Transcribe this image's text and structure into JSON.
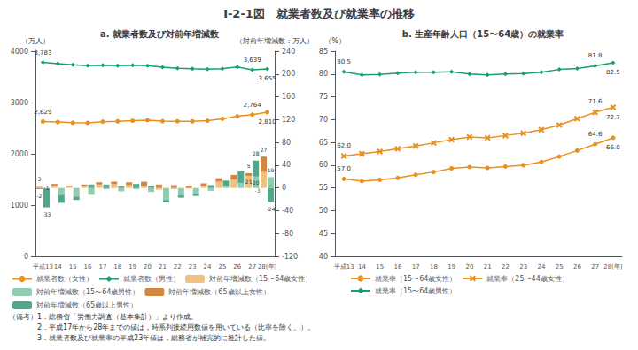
{
  "title": "I-2-1図　就業者数及び就業率の推移",
  "notes": [
    "（備考）1．総務省「労働力調査（基本集計）」より作成。",
    "　　　　2．平成17年から28年までの値は，時系列接続用数値を用いている（比率を除く。）。",
    "　　　　3．就業者数及び就業率の平成23年値は，総務省が補完的に推計した値。"
  ],
  "chart_data": [
    {
      "type": "bar",
      "title": "a. 就業者数及び対前年増減数",
      "ylabel": "（万人）",
      "y2label": "（対前年増減数：万人）",
      "categories": [
        "平成13",
        "14",
        "15",
        "16",
        "17",
        "18",
        "19",
        "20",
        "21",
        "22",
        "23",
        "24",
        "25",
        "26",
        "27",
        "28(年)"
      ],
      "ylim": [
        0,
        4000
      ],
      "yticks": [
        0,
        1000,
        2000,
        3000,
        4000
      ],
      "y2lim": [
        -120,
        240
      ],
      "y2ticks": [
        -120,
        -80,
        -40,
        0,
        40,
        80,
        120,
        160,
        200,
        240
      ],
      "grid": false,
      "stacked": true,
      "series": [
        {
          "name": "就業者数（女性）",
          "type": "line",
          "color": "#E89020",
          "marker": "circle",
          "values": [
            2629,
            2620,
            2607,
            2604,
            2627,
            2634,
            2645,
            2656,
            2637,
            2635,
            2634,
            2645,
            2682,
            2731,
            2764,
            2810
          ],
          "value_labels": [
            "2,629",
            null,
            null,
            null,
            null,
            null,
            null,
            null,
            null,
            null,
            null,
            null,
            null,
            null,
            "2,764",
            "2,810"
          ]
        },
        {
          "name": "就業者数（男性）",
          "type": "line",
          "color": "#1A9E6E",
          "marker": "diamond",
          "values": [
            3783,
            3758,
            3737,
            3718,
            3728,
            3720,
            3730,
            3721,
            3690,
            3670,
            3658,
            3650,
            3660,
            3695,
            3639,
            3655
          ],
          "value_labels": [
            "3,783",
            null,
            null,
            null,
            null,
            null,
            null,
            null,
            null,
            null,
            null,
            null,
            null,
            null,
            "3,639",
            "3,655"
          ]
        },
        {
          "name": "対前年増減数（15〜64歳女性）",
          "type": "bar",
          "axis": "y2",
          "color": "#F0C080",
          "values": [
            3,
            4,
            2,
            3,
            6,
            7,
            5,
            4,
            -3,
            -2,
            -1,
            4,
            11,
            15,
            21,
            28
          ],
          "value_labels": [
            "3",
            null,
            null,
            null,
            null,
            null,
            null,
            null,
            null,
            null,
            null,
            null,
            null,
            null,
            "21",
            null
          ]
        },
        {
          "name": "対前年増減数（15〜64歳男性）",
          "type": "bar",
          "axis": "y2",
          "color": "#90CCB0",
          "values": [
            -1,
            -12,
            -15,
            -12,
            -2,
            -6,
            -2,
            -7,
            -21,
            -13,
            -10,
            -5,
            4,
            9,
            20,
            19
          ],
          "value_labels": [
            "-1",
            null,
            null,
            null,
            null,
            null,
            null,
            null,
            null,
            null,
            null,
            null,
            null,
            null,
            "20",
            "19"
          ]
        },
        {
          "name": "対前年増減数（65歳以上女性）",
          "type": "bar",
          "axis": "y2",
          "color": "#D08840",
          "values": [
            -2,
            3,
            2,
            3,
            4,
            4,
            5,
            7,
            6,
            5,
            4,
            4,
            6,
            8,
            5,
            27
          ],
          "value_labels": [
            "-2",
            null,
            null,
            null,
            null,
            null,
            null,
            null,
            null,
            null,
            null,
            null,
            null,
            null,
            "5",
            "27"
          ]
        },
        {
          "name": "対前年増減数（65歳以上男性）",
          "type": "bar",
          "axis": "y2",
          "color": "#50A888",
          "values": [
            -33,
            -14,
            -6,
            6,
            6,
            3,
            7,
            3,
            -4,
            -4,
            -4,
            5,
            9,
            21,
            28,
            -24
          ],
          "value_labels": [
            "-33",
            null,
            null,
            null,
            null,
            null,
            null,
            null,
            null,
            null,
            null,
            null,
            null,
            null,
            "28",
            "-24"
          ]
        }
      ],
      "annotations": [
        {
          "text": "-3",
          "x": "28(年)",
          "y": -5,
          "axis": "y2"
        }
      ]
    },
    {
      "type": "line",
      "title": "b. 生産年齢人口（15〜64歳）の就業率",
      "ylabel": "（%）",
      "categories": [
        "平成13",
        "14",
        "15",
        "16",
        "17",
        "18",
        "19",
        "20",
        "21",
        "22",
        "23",
        "24",
        "25",
        "26",
        "27",
        "28(年)"
      ],
      "ylim": [
        40,
        85
      ],
      "yticks": [
        40,
        45,
        50,
        55,
        60,
        65,
        70,
        75,
        80,
        85
      ],
      "grid": false,
      "series": [
        {
          "name": "就業率（15〜64歳女性）",
          "color": "#E89020",
          "marker": "circle",
          "values": [
            57.0,
            56.5,
            56.8,
            57.2,
            57.9,
            58.5,
            59.3,
            59.6,
            59.4,
            59.7,
            60.0,
            60.7,
            61.9,
            63.2,
            64.6,
            66.0
          ],
          "value_labels": [
            "57.0",
            null,
            null,
            null,
            null,
            null,
            null,
            null,
            null,
            null,
            null,
            null,
            null,
            null,
            "64.6",
            "66.0"
          ]
        },
        {
          "name": "就業率（25〜44歳女性）",
          "color": "#E89020",
          "marker": "x",
          "values": [
            62.0,
            62.5,
            63.0,
            63.6,
            64.2,
            64.9,
            65.6,
            66.2,
            66.0,
            66.5,
            67.0,
            67.8,
            68.8,
            70.2,
            71.6,
            72.7
          ],
          "value_labels": [
            "62.0",
            null,
            null,
            null,
            null,
            null,
            null,
            null,
            null,
            null,
            null,
            null,
            null,
            null,
            "71.6",
            "72.7"
          ]
        },
        {
          "name": "就業率（15〜64歳男性）",
          "color": "#1A9E6E",
          "marker": "diamond",
          "values": [
            80.5,
            79.8,
            79.9,
            80.2,
            80.4,
            80.4,
            80.5,
            80.0,
            79.8,
            80.0,
            80.1,
            80.4,
            81.0,
            81.2,
            81.8,
            82.5
          ],
          "value_labels": [
            "80.5",
            null,
            null,
            null,
            null,
            null,
            null,
            null,
            null,
            null,
            null,
            null,
            null,
            null,
            "81.8",
            "82.5"
          ]
        }
      ]
    }
  ]
}
